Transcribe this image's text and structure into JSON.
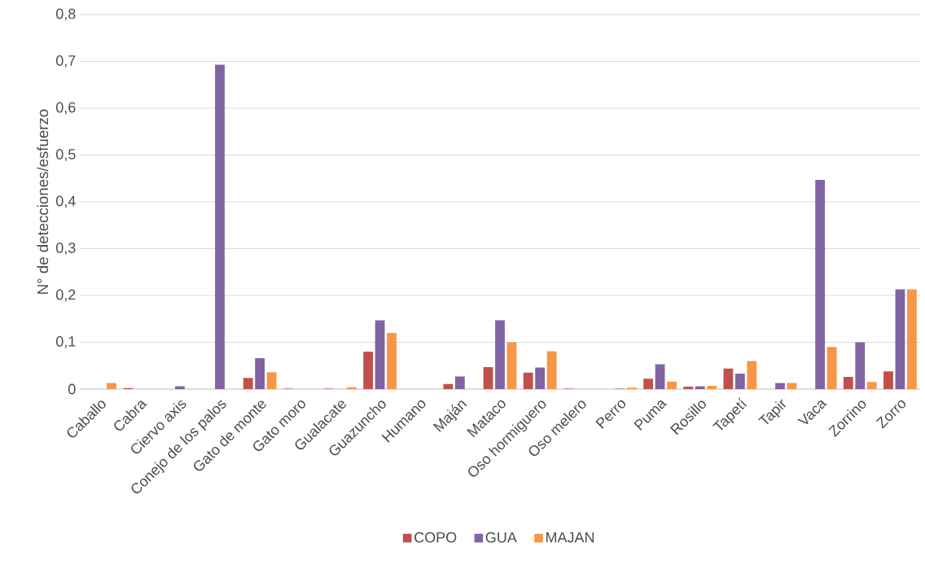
{
  "chart_data": {
    "type": "bar",
    "ylabel": "N° de detecciones/esfuerzo",
    "categories": [
      "Caballo",
      "Cabra",
      "Ciervo axis",
      "Conejo de los palos",
      "Gato de monte",
      "Gato moro",
      "Gualacate",
      "Guazuncho",
      "Humano",
      "Maján",
      "Mataco",
      "Oso hormiguero",
      "Oso melero",
      "Perro",
      "Puma",
      "Rosillo",
      "Tapetí",
      "Tapir",
      "Vaca",
      "Zorrino",
      "Zorro"
    ],
    "series": [
      {
        "name": "COPO",
        "color": "#c0504d",
        "values": [
          0,
          0.002,
          0,
          0,
          0.024,
          0.001,
          0.001,
          0.08,
          0,
          0.011,
          0.047,
          0.035,
          0.001,
          0,
          0.022,
          0.005,
          0.044,
          0,
          0,
          0.026,
          0.038
        ]
      },
      {
        "name": "GUA",
        "color": "#8064a2",
        "values": [
          0,
          0,
          0.006,
          0.693,
          0.066,
          0,
          0,
          0.147,
          0,
          0.027,
          0.147,
          0.046,
          0,
          0.001,
          0.053,
          0.006,
          0.033,
          0.013,
          0.447,
          0.1,
          0.213
        ]
      },
      {
        "name": "MAJAN",
        "color": "#f79646",
        "values": [
          0.013,
          0,
          0,
          0,
          0.036,
          0,
          0.004,
          0.12,
          0,
          0,
          0.1,
          0.081,
          0,
          0.003,
          0.016,
          0.007,
          0.06,
          0.013,
          0.09,
          0.015,
          0.213
        ]
      }
    ],
    "ylim": [
      0,
      0.8
    ],
    "yticks": [
      {
        "value": 0,
        "label": "0"
      },
      {
        "value": 0.1,
        "label": "0,1"
      },
      {
        "value": 0.2,
        "label": "0,2"
      },
      {
        "value": 0.3,
        "label": "0,3"
      },
      {
        "value": 0.4,
        "label": "0,4"
      },
      {
        "value": 0.5,
        "label": "0,5"
      },
      {
        "value": 0.6,
        "label": "0,6"
      },
      {
        "value": 0.7,
        "label": "0,7"
      },
      {
        "value": 0.8,
        "label": "0,8"
      }
    ],
    "grid": "y",
    "legend": "bottom"
  }
}
